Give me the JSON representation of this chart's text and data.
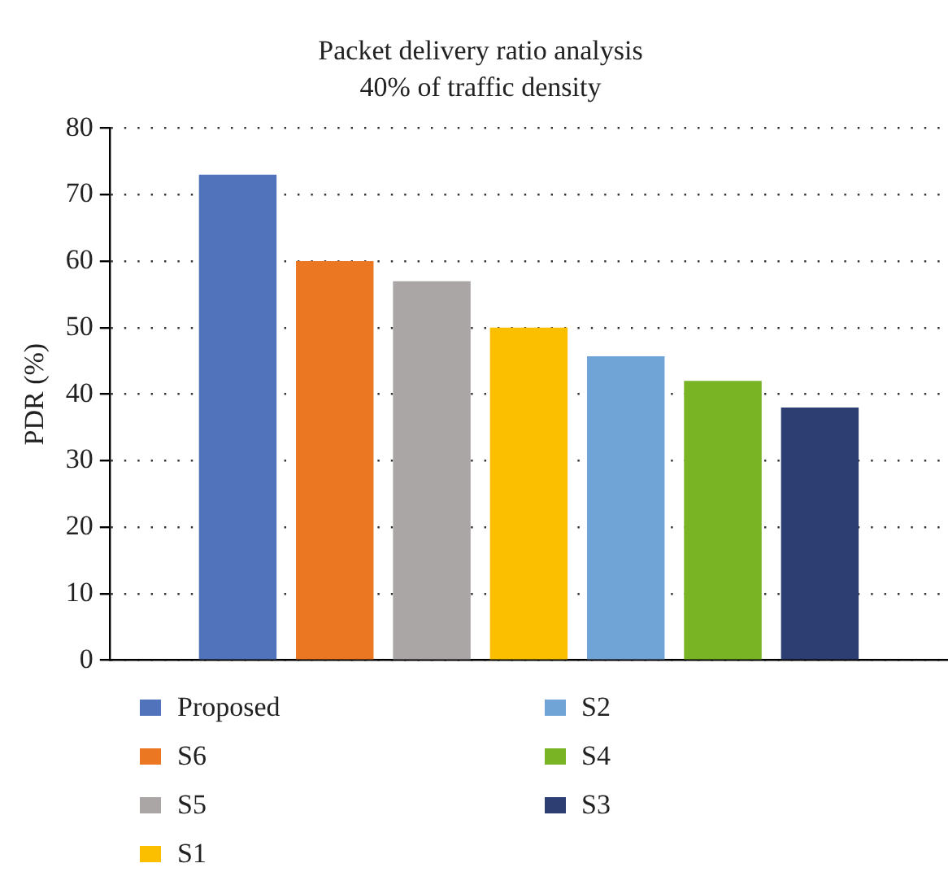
{
  "chart_data": {
    "type": "bar",
    "title": "Packet delivery ratio analysis",
    "subtitle": "40% of traffic density",
    "ylabel": "PDR (%)",
    "categories": [
      null
    ],
    "series": [
      {
        "name": "Proposed",
        "color": "#5173bb",
        "values": [
          73
        ]
      },
      {
        "name": "S6",
        "color": "#ec7723",
        "values": [
          60
        ]
      },
      {
        "name": "S5",
        "color": "#a9a6a5",
        "values": [
          57
        ]
      },
      {
        "name": "S1",
        "color": "#fbbf00",
        "values": [
          50
        ]
      },
      {
        "name": "S2",
        "color": "#70a3d6",
        "values": [
          45.7
        ]
      },
      {
        "name": "S4",
        "color": "#78b424",
        "values": [
          42
        ]
      },
      {
        "name": "S3",
        "color": "#2c3e72",
        "values": [
          38
        ]
      }
    ],
    "ylim": [
      0,
      80
    ],
    "yticks": [
      0,
      10,
      20,
      30,
      40,
      50,
      60,
      70,
      80
    ],
    "grid": "y",
    "legend": "bottom"
  }
}
